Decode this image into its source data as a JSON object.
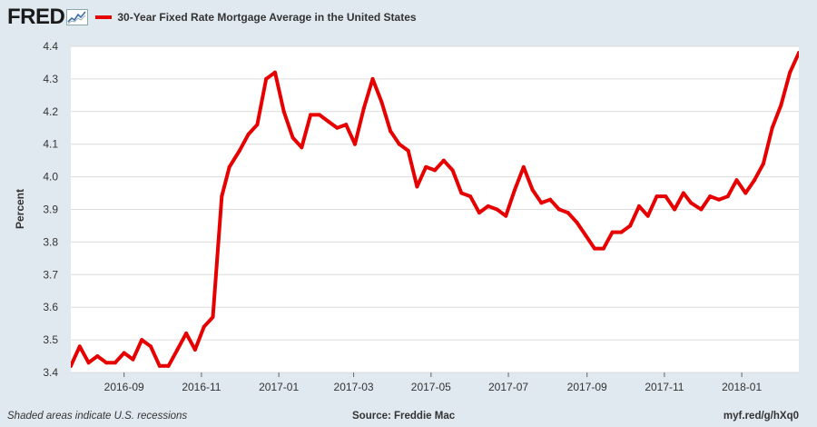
{
  "header": {
    "logo_text": "FRED",
    "logo_icon": "trend-graph-icon"
  },
  "colors": {
    "series": "#e60000",
    "plot_bg": "#ffffff",
    "page_bg": "#e1e9f0",
    "grid": "#dcdcdc"
  },
  "footer": {
    "recession_note": "Shaded areas indicate U.S. recessions",
    "source": "Source: Freddie Mac",
    "link": "myf.red/g/hXq0"
  },
  "chart_data": {
    "type": "line",
    "title": "30-Year Fixed Rate Mortgage Average in the United States",
    "ylabel": "Percent",
    "xlabel": "",
    "ylim": [
      3.4,
      4.4
    ],
    "yticks": [
      "3.4",
      "3.5",
      "3.6",
      "3.7",
      "3.8",
      "3.9",
      "4.0",
      "4.1",
      "4.2",
      "4.3",
      "4.4"
    ],
    "xlim": [
      "2016-07-21",
      "2018-02-15"
    ],
    "xticks": [
      {
        "date": "2016-09-01",
        "label": "2016-09"
      },
      {
        "date": "2016-11-01",
        "label": "2016-11"
      },
      {
        "date": "2017-01-01",
        "label": "2017-01"
      },
      {
        "date": "2017-03-01",
        "label": "2017-03"
      },
      {
        "date": "2017-05-01",
        "label": "2017-05"
      },
      {
        "date": "2017-07-01",
        "label": "2017-07"
      },
      {
        "date": "2017-09-01",
        "label": "2017-09"
      },
      {
        "date": "2017-11-01",
        "label": "2017-11"
      },
      {
        "date": "2018-01-01",
        "label": "2018-01"
      }
    ],
    "grid": true,
    "legend": "top-left",
    "series": [
      {
        "name": "30-Year Fixed Rate Mortgage Average in the United States",
        "x": [
          "2016-07-21",
          "2016-07-28",
          "2016-08-04",
          "2016-08-11",
          "2016-08-18",
          "2016-08-25",
          "2016-09-01",
          "2016-09-08",
          "2016-09-15",
          "2016-09-22",
          "2016-09-29",
          "2016-10-06",
          "2016-10-13",
          "2016-10-20",
          "2016-10-27",
          "2016-11-03",
          "2016-11-10",
          "2016-11-17",
          "2016-11-23",
          "2016-12-01",
          "2016-12-08",
          "2016-12-15",
          "2016-12-22",
          "2016-12-29",
          "2017-01-05",
          "2017-01-12",
          "2017-01-19",
          "2017-01-26",
          "2017-02-02",
          "2017-02-09",
          "2017-02-16",
          "2017-02-23",
          "2017-03-02",
          "2017-03-09",
          "2017-03-16",
          "2017-03-23",
          "2017-03-30",
          "2017-04-06",
          "2017-04-13",
          "2017-04-20",
          "2017-04-27",
          "2017-05-04",
          "2017-05-11",
          "2017-05-18",
          "2017-05-25",
          "2017-06-01",
          "2017-06-08",
          "2017-06-15",
          "2017-06-22",
          "2017-06-29",
          "2017-07-06",
          "2017-07-13",
          "2017-07-20",
          "2017-07-27",
          "2017-08-03",
          "2017-08-10",
          "2017-08-17",
          "2017-08-24",
          "2017-08-31",
          "2017-09-07",
          "2017-09-14",
          "2017-09-21",
          "2017-09-28",
          "2017-10-05",
          "2017-10-12",
          "2017-10-19",
          "2017-10-26",
          "2017-11-02",
          "2017-11-09",
          "2017-11-16",
          "2017-11-22",
          "2017-11-30",
          "2017-12-07",
          "2017-12-14",
          "2017-12-21",
          "2017-12-28",
          "2018-01-04",
          "2018-01-11",
          "2018-01-18",
          "2018-01-25",
          "2018-02-01",
          "2018-02-08",
          "2018-02-15"
        ],
        "values": [
          3.42,
          3.48,
          3.43,
          3.45,
          3.43,
          3.43,
          3.46,
          3.44,
          3.5,
          3.48,
          3.42,
          3.42,
          3.47,
          3.52,
          3.47,
          3.54,
          3.57,
          3.94,
          4.03,
          4.08,
          4.13,
          4.16,
          4.3,
          4.32,
          4.2,
          4.12,
          4.09,
          4.19,
          4.19,
          4.17,
          4.15,
          4.16,
          4.1,
          4.21,
          4.3,
          4.23,
          4.14,
          4.1,
          4.08,
          3.97,
          4.03,
          4.02,
          4.05,
          4.02,
          3.95,
          3.94,
          3.89,
          3.91,
          3.9,
          3.88,
          3.96,
          4.03,
          3.96,
          3.92,
          3.93,
          3.9,
          3.89,
          3.86,
          3.82,
          3.78,
          3.78,
          3.83,
          3.83,
          3.85,
          3.91,
          3.88,
          3.94,
          3.94,
          3.9,
          3.95,
          3.92,
          3.9,
          3.94,
          3.93,
          3.94,
          3.99,
          3.95,
          3.99,
          4.04,
          4.15,
          4.22,
          4.32,
          4.38
        ]
      }
    ]
  }
}
